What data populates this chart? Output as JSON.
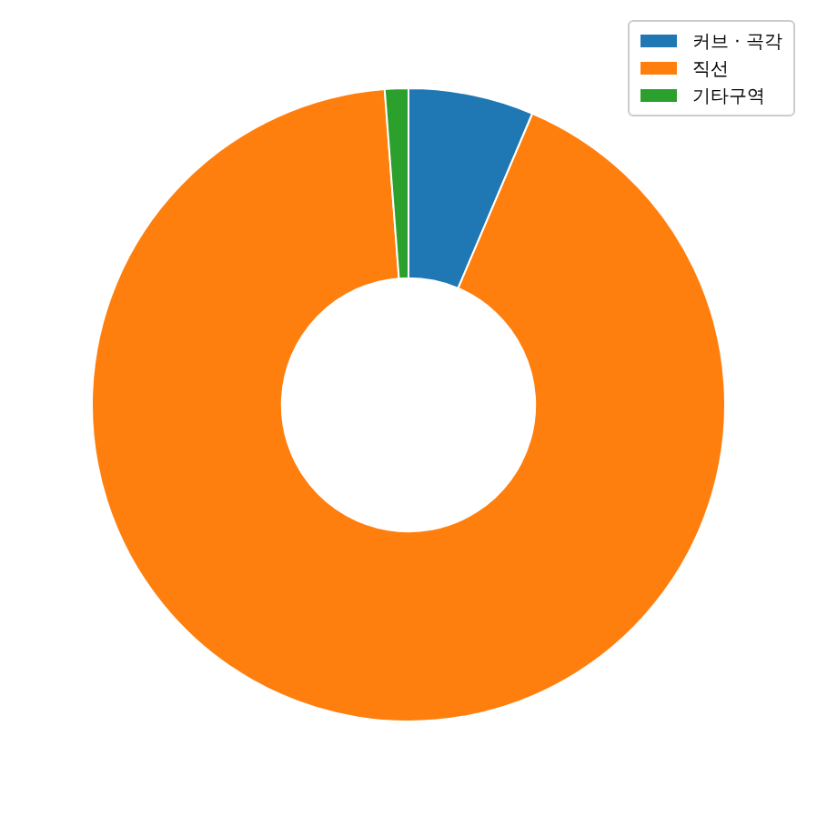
{
  "chart_data": {
    "type": "donut",
    "categories": [
      "커브 · 곡각",
      "직선",
      "기타구역"
    ],
    "values": [
      6.4,
      92.4,
      1.2
    ],
    "colors": [
      "#1f77b4",
      "#ff7f0e",
      "#2ca02c"
    ],
    "legend": "top right"
  }
}
